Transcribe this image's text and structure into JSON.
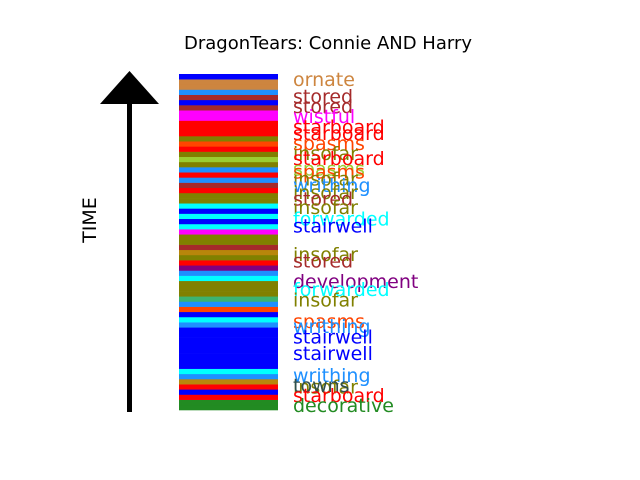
{
  "chart_data": {
    "type": "bar",
    "title": "DragonTears: Connie AND Harry",
    "ylabel": "TIME",
    "xlabel": "",
    "time_direction": "up",
    "stripe_colors": [
      "#228b22",
      "#228b22",
      "#ff0000",
      "#0000ff",
      "#ff0000",
      "#b8860b",
      "#1e90ff",
      "#00ffff",
      "#0000ff",
      "#0000ff",
      "#0000ff",
      "#0000ff",
      "#0000ff",
      "#0000ff",
      "#0000ff",
      "#0000ff",
      "#1e90ff",
      "#00ffff",
      "#0000ff",
      "#ff4500",
      "#1e90ff",
      "#3cb371",
      "#808000",
      "#808000",
      "#808000",
      "#00ffff",
      "#1e90ff",
      "#800080",
      "#ff0000",
      "#808000",
      "#b8860b",
      "#a52a2a",
      "#808000",
      "#808000",
      "#ff00ff",
      "#00ffff",
      "#0000ff",
      "#00ffff",
      "#0000ff",
      "#00ffff",
      "#808000",
      "#808000",
      "#ff0000",
      "#a52a2a",
      "#1e90ff",
      "#ff0000",
      "#1e90ff",
      "#808000",
      "#9acd32",
      "#808000",
      "#ff0000",
      "#ff4500",
      "#808000",
      "#ff0000",
      "#ff0000",
      "#ff0000",
      "#ff00ff",
      "#ff00ff",
      "#a52a2a",
      "#0000ff",
      "#a52a2a",
      "#1e90ff",
      "#cd853f",
      "#cd853f",
      "#0000ff"
    ],
    "labels": [
      {
        "text": "ornate",
        "color": "#cd853f",
        "position": 0.98
      },
      {
        "text": "stored",
        "color": "#a52a2a",
        "position": 0.93
      },
      {
        "text": "stored",
        "color": "#a52a2a",
        "position": 0.9
      },
      {
        "text": "wistful",
        "color": "#ff00ff",
        "position": 0.87
      },
      {
        "text": "starboard",
        "color": "#ff0000",
        "position": 0.84
      },
      {
        "text": "starboard",
        "color": "#ff0000",
        "position": 0.82
      },
      {
        "text": "spasms",
        "color": "#ff4500",
        "position": 0.79
      },
      {
        "text": "insofar",
        "color": "#808000",
        "position": 0.76
      },
      {
        "text": "starboard",
        "color": "#ff0000",
        "position": 0.745
      },
      {
        "text": "spasms",
        "color": "#9acd32",
        "position": 0.715
      },
      {
        "text": "spasms",
        "color": "#ff4500",
        "position": 0.705
      },
      {
        "text": "insofar",
        "color": "#808000",
        "position": 0.685
      },
      {
        "text": "writhing",
        "color": "#1e90ff",
        "position": 0.665
      },
      {
        "text": "insofar",
        "color": "#808000",
        "position": 0.645
      },
      {
        "text": "stored",
        "color": "#a52a2a",
        "position": 0.625
      },
      {
        "text": "insofar",
        "color": "#808000",
        "position": 0.6
      },
      {
        "text": "forwarded",
        "color": "#00ffff",
        "position": 0.565
      },
      {
        "text": "stairwell",
        "color": "#0000ff",
        "position": 0.545
      },
      {
        "text": "insofar",
        "color": "#808000",
        "position": 0.46
      },
      {
        "text": "stored",
        "color": "#a52a2a",
        "position": 0.44
      },
      {
        "text": "development",
        "color": "#800080",
        "position": 0.38
      },
      {
        "text": "forwarded",
        "color": "#00ffff",
        "position": 0.355
      },
      {
        "text": "insofar",
        "color": "#808000",
        "position": 0.325
      },
      {
        "text": "spasms",
        "color": "#ff4500",
        "position": 0.26
      },
      {
        "text": "writhing",
        "color": "#1e90ff",
        "position": 0.245
      },
      {
        "text": "stairwell",
        "color": "#0000ff",
        "position": 0.215
      },
      {
        "text": "stairwell",
        "color": "#0000ff",
        "position": 0.165
      },
      {
        "text": "writhing",
        "color": "#1e90ff",
        "position": 0.1
      },
      {
        "text": "insofar",
        "color": "#808000",
        "position": 0.065
      },
      {
        "text": "towns",
        "color": "#2f4f4f",
        "position": 0.07
      },
      {
        "text": "starboard",
        "color": "#ff0000",
        "position": 0.04
      },
      {
        "text": "decorative",
        "color": "#228b22",
        "position": 0.01
      }
    ]
  }
}
